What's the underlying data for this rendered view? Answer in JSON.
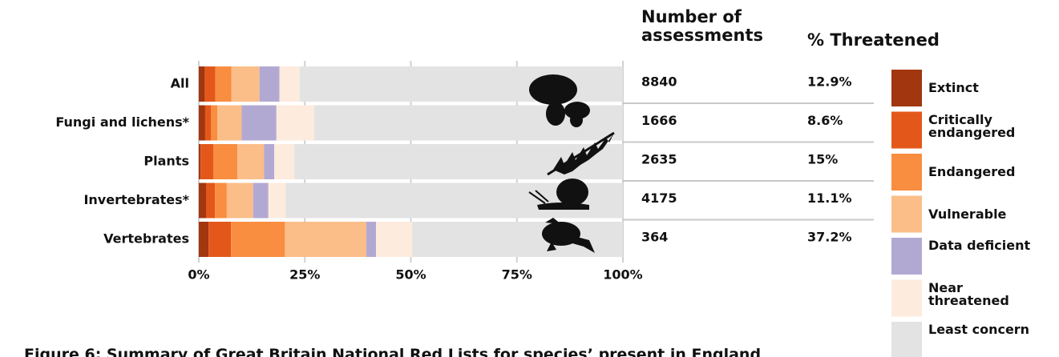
{
  "chart_data": {
    "type": "stacked-barh",
    "title": "Figure 6: Summary of Great Britain National Red Lists for species’ present in England",
    "categories": [
      "All",
      "Fungi and lichens*",
      "Plants",
      "Invertebrates*",
      "Vertebrates"
    ],
    "series": [
      {
        "name": "Extinct",
        "color": "#a1360f",
        "values": [
          1.4,
          1.5,
          0.4,
          1.7,
          2.3
        ]
      },
      {
        "name": "Critically endangered",
        "color": "#e3581a",
        "values": [
          2.5,
          1.4,
          3.0,
          2.1,
          5.3
        ]
      },
      {
        "name": "Endangered",
        "color": "#f98d40",
        "values": [
          3.8,
          1.5,
          5.7,
          2.8,
          12.7
        ]
      },
      {
        "name": "Vulnerable",
        "color": "#fbbe88",
        "values": [
          6.6,
          5.7,
          6.3,
          6.2,
          19.2
        ]
      },
      {
        "name": "Data deficient",
        "color": "#b2a9d3",
        "values": [
          4.7,
          8.2,
          2.4,
          3.6,
          2.3
        ]
      },
      {
        "name": "Near threatened",
        "color": "#fdebde",
        "values": [
          4.8,
          8.9,
          4.7,
          4.1,
          8.5
        ]
      },
      {
        "name": "Least concern",
        "color": "#e3e3e3",
        "values": [
          76.2,
          72.8,
          77.5,
          79.5,
          49.7
        ]
      }
    ],
    "xlim": [
      0,
      100
    ],
    "xticks": [
      {
        "value": 0,
        "label": "0%"
      },
      {
        "value": 25,
        "label": "25%"
      },
      {
        "value": 50,
        "label": "50%"
      },
      {
        "value": 75,
        "label": "75%"
      },
      {
        "value": 100,
        "label": "100%"
      }
    ],
    "grid": true,
    "table": {
      "headers": [
        "Number of assessments",
        "% Threatened"
      ],
      "rows": [
        [
          "8840",
          "12.9%"
        ],
        [
          "1666",
          "8.6%"
        ],
        [
          "2635",
          "15%"
        ],
        [
          "4175",
          "11.1%"
        ],
        [
          "364",
          "37.2%"
        ]
      ]
    }
  }
}
